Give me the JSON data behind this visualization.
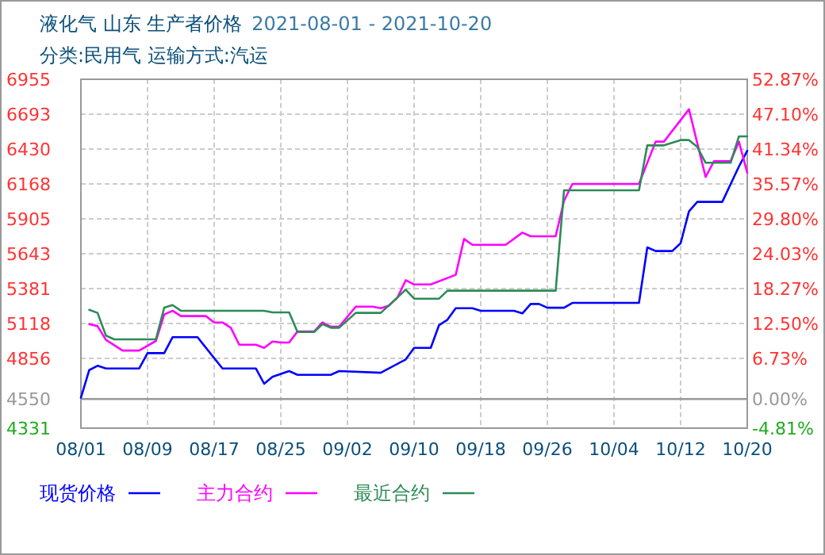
{
  "chart_data": {
    "type": "line",
    "title": "液化气 山东 生产者价格",
    "subtitle": "分类:民用气 运输方式:汽运",
    "annotations": [
      "2021-08-01 - 2021-10-20"
    ],
    "xlim": [
      "2021-08-01",
      "2021-10-20"
    ],
    "xticks": [
      {
        "value": "2021-08-01",
        "label": "08/01"
      },
      {
        "value": "2021-08-09",
        "label": "08/09"
      },
      {
        "value": "2021-08-17",
        "label": "08/17"
      },
      {
        "value": "2021-08-25",
        "label": "08/25"
      },
      {
        "value": "2021-09-02",
        "label": "09/02"
      },
      {
        "value": "2021-09-10",
        "label": "09/10"
      },
      {
        "value": "2021-09-18",
        "label": "09/18"
      },
      {
        "value": "2021-09-26",
        "label": "09/26"
      },
      {
        "value": "2021-10-04",
        "label": "10/04"
      },
      {
        "value": "2021-10-12",
        "label": "10/12"
      },
      {
        "value": "2021-10-20",
        "label": "10/20"
      }
    ],
    "ylim": [
      4331,
      6955
    ],
    "yticks": [
      4331,
      4550,
      4856,
      5118,
      5381,
      5643,
      5905,
      6168,
      6430,
      6693,
      6955
    ],
    "y2lim": [
      -4.81,
      52.87
    ],
    "y2ticks": [
      {
        "value": -4.81,
        "label": "-4.81%"
      },
      {
        "value": 0,
        "label": "0.00%"
      },
      {
        "value": 6.73,
        "label": "6.73%"
      },
      {
        "value": 12.5,
        "label": "12.50%"
      },
      {
        "value": 18.27,
        "label": "18.27%"
      },
      {
        "value": 24.03,
        "label": "24.03%"
      },
      {
        "value": 29.8,
        "label": "29.80%"
      },
      {
        "value": 35.57,
        "label": "35.57%"
      },
      {
        "value": 41.34,
        "label": "41.34%"
      },
      {
        "value": 47.1,
        "label": "47.10%"
      },
      {
        "value": 52.87,
        "label": "52.87%"
      }
    ],
    "ref_lines": [
      {
        "axis": "y2",
        "value": 0,
        "color": "#999999"
      }
    ],
    "grid": true,
    "legend": "bottom",
    "line_style": "solid",
    "marker": "none",
    "series": [
      {
        "name": "现货价格",
        "color": "#0000ff",
        "x": [
          "2021-08-01",
          "2021-08-02",
          "2021-08-03",
          "2021-08-04",
          "2021-08-08",
          "2021-08-09",
          "2021-08-11",
          "2021-08-12",
          "2021-08-15",
          "2021-08-18",
          "2021-08-22",
          "2021-08-23",
          "2021-08-24",
          "2021-08-26",
          "2021-08-27",
          "2021-08-31",
          "2021-09-01",
          "2021-09-06",
          "2021-09-09",
          "2021-09-10",
          "2021-09-12",
          "2021-09-13",
          "2021-09-14",
          "2021-09-15",
          "2021-09-17",
          "2021-09-18",
          "2021-09-22",
          "2021-09-23",
          "2021-09-24",
          "2021-09-25",
          "2021-09-26",
          "2021-09-28",
          "2021-09-29",
          "2021-10-07",
          "2021-10-08",
          "2021-10-09",
          "2021-10-11",
          "2021-10-12",
          "2021-10-13",
          "2021-10-14",
          "2021-10-17",
          "2021-10-19",
          "2021-10-20"
        ],
        "values": [
          4560,
          4768,
          4800,
          4780,
          4780,
          4895,
          4895,
          5015,
          5015,
          4780,
          4780,
          4665,
          4717,
          4760,
          4732,
          4732,
          4760,
          4748,
          4848,
          4935,
          4935,
          5106,
          5146,
          5233,
          5233,
          5214,
          5214,
          5194,
          5265,
          5265,
          5237,
          5237,
          5273,
          5273,
          5691,
          5663,
          5663,
          5722,
          5961,
          6033,
          6033,
          6299,
          6418
        ]
      },
      {
        "name": "主力合约",
        "color": "#ff00ff",
        "x": [
          "2021-08-02",
          "2021-08-03",
          "2021-08-04",
          "2021-08-06",
          "2021-08-08",
          "2021-08-10",
          "2021-08-11",
          "2021-08-12",
          "2021-08-13",
          "2021-08-16",
          "2021-08-17",
          "2021-08-18",
          "2021-08-19",
          "2021-08-20",
          "2021-08-22",
          "2021-08-23",
          "2021-08-24",
          "2021-08-25",
          "2021-08-26",
          "2021-08-27",
          "2021-08-29",
          "2021-08-30",
          "2021-08-31",
          "2021-09-01",
          "2021-09-03",
          "2021-09-05",
          "2021-09-06",
          "2021-09-07",
          "2021-09-08",
          "2021-09-09",
          "2021-09-10",
          "2021-09-12",
          "2021-09-15",
          "2021-09-16",
          "2021-09-17",
          "2021-09-21",
          "2021-09-23",
          "2021-09-24",
          "2021-09-27",
          "2021-09-28",
          "2021-09-29",
          "2021-10-07",
          "2021-10-09",
          "2021-10-10",
          "2021-10-13",
          "2021-10-15",
          "2021-10-16",
          "2021-10-18",
          "2021-10-19",
          "2021-10-20"
        ],
        "values": [
          5114,
          5098,
          4995,
          4915,
          4915,
          4987,
          5186,
          5214,
          5174,
          5174,
          5126,
          5126,
          5086,
          4959,
          4959,
          4935,
          4983,
          4975,
          4975,
          5058,
          5058,
          5126,
          5094,
          5094,
          5245,
          5245,
          5233,
          5253,
          5313,
          5444,
          5412,
          5412,
          5484,
          5754,
          5710,
          5710,
          5802,
          5774,
          5774,
          6041,
          6168,
          6168,
          6486,
          6486,
          6729,
          6220,
          6339,
          6339,
          6486,
          6251
        ]
      },
      {
        "name": "最近合约",
        "color": "#2e8b57",
        "x": [
          "2021-08-02",
          "2021-08-03",
          "2021-08-04",
          "2021-08-05",
          "2021-08-10",
          "2021-08-11",
          "2021-08-12",
          "2021-08-13",
          "2021-08-23",
          "2021-08-24",
          "2021-08-26",
          "2021-08-27",
          "2021-08-29",
          "2021-08-30",
          "2021-08-31",
          "2021-09-01",
          "2021-09-03",
          "2021-09-06",
          "2021-09-09",
          "2021-09-10",
          "2021-09-13",
          "2021-09-14",
          "2021-09-27",
          "2021-09-28",
          "2021-10-07",
          "2021-10-08",
          "2021-10-10",
          "2021-10-12",
          "2021-10-13",
          "2021-10-14",
          "2021-10-15",
          "2021-10-18",
          "2021-10-19",
          "2021-10-20"
        ],
        "values": [
          5221,
          5198,
          5027,
          4999,
          4999,
          5237,
          5257,
          5214,
          5214,
          5202,
          5202,
          5054,
          5054,
          5114,
          5086,
          5086,
          5198,
          5198,
          5373,
          5305,
          5305,
          5365,
          5365,
          6120,
          6120,
          6458,
          6458,
          6498,
          6498,
          6446,
          6327,
          6327,
          6526,
          6526
        ]
      }
    ]
  }
}
